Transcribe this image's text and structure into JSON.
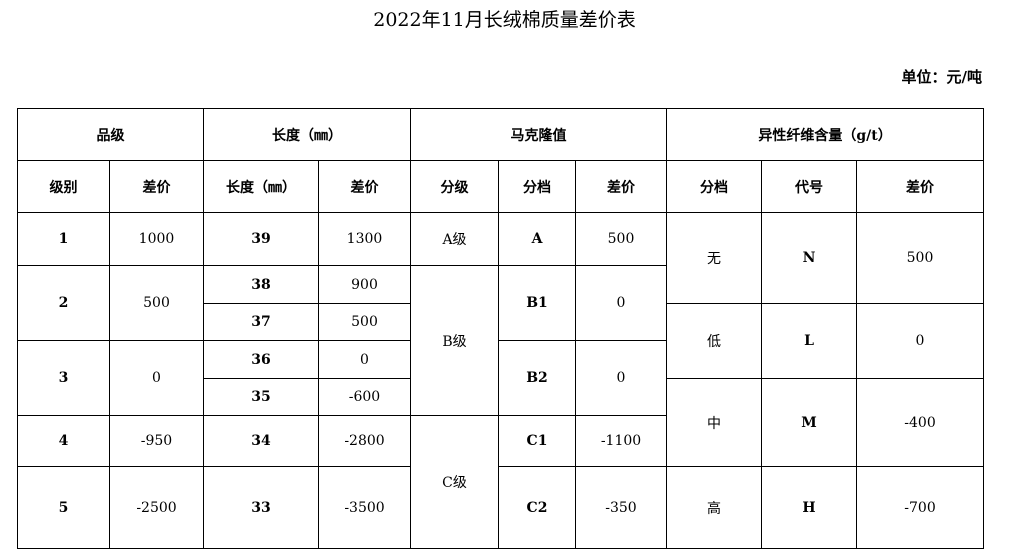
{
  "title": "2022年11月长绒棉质量差价表",
  "unit": "单位：元/吨",
  "headers": {
    "grade": "品级",
    "length": "长度（㎜）",
    "micronaire": "马克隆值",
    "foreign_fiber": "异性纤维含量（g/t）",
    "grade_level": "级别",
    "grade_diff": "差价",
    "length_mm": "长度（㎜）",
    "length_diff": "差价",
    "mic_class": "分级",
    "mic_band": "分档",
    "mic_diff": "差价",
    "ff_band": "分档",
    "ff_code": "代号",
    "ff_diff": "差价"
  },
  "grades": [
    {
      "level": "1",
      "diff": "1000"
    },
    {
      "level": "2",
      "diff": "500"
    },
    {
      "level": "3",
      "diff": "0"
    },
    {
      "level": "4",
      "diff": "-950"
    },
    {
      "level": "5",
      "diff": "-2500"
    }
  ],
  "lengths": [
    {
      "mm": "39",
      "diff": "1300"
    },
    {
      "mm": "38",
      "diff": "900"
    },
    {
      "mm": "37",
      "diff": "500"
    },
    {
      "mm": "36",
      "diff": "0"
    },
    {
      "mm": "35",
      "diff": "-600"
    },
    {
      "mm": "34",
      "diff": "-2800"
    },
    {
      "mm": "33",
      "diff": "-3500"
    }
  ],
  "mic_classes": [
    "A级",
    "B级",
    "C级"
  ],
  "mic_bands": [
    {
      "band": "A",
      "diff": "500"
    },
    {
      "band": "B1",
      "diff": "0"
    },
    {
      "band": "B2",
      "diff": "0"
    },
    {
      "band": "C1",
      "diff": "-1100"
    },
    {
      "band": "C2",
      "diff": "-350"
    }
  ],
  "foreign": [
    {
      "band": "无",
      "code": "N",
      "diff": "500"
    },
    {
      "band": "低",
      "code": "L",
      "diff": "0"
    },
    {
      "band": "中",
      "code": "M",
      "diff": "-400"
    },
    {
      "band": "高",
      "code": "H",
      "diff": "-700"
    }
  ]
}
